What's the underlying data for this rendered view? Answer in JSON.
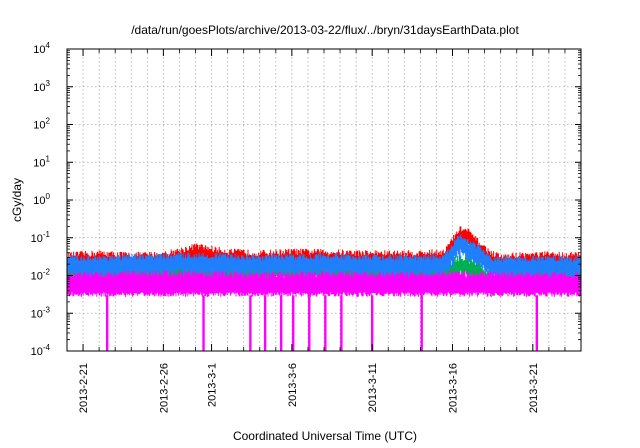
{
  "chart_data": {
    "type": "line",
    "title": "/data/run/goesPlots/archive/2013-03-22/flux/../bryn/31daysEarthData.plot",
    "xlabel": "Coordinated Universal Time (UTC)",
    "ylabel": "cGy/day",
    "x_range": [
      "2013-02-20T00:00",
      "2013-03-24T00:00"
    ],
    "x_ticks": [
      "2013-2-21",
      "2013-2-26",
      "2013-3-1",
      "2013-3-6",
      "2013-3-11",
      "2013-3-16",
      "2013-3-21"
    ],
    "x_minor_ticks": [
      "2013-02-22",
      "2013-02-23",
      "2013-02-24",
      "2013-02-25",
      "2013-02-27",
      "2013-02-28",
      "2013-03-02",
      "2013-03-03",
      "2013-03-04",
      "2013-03-05",
      "2013-03-07",
      "2013-03-08",
      "2013-03-09",
      "2013-03-10",
      "2013-03-12",
      "2013-03-13",
      "2013-03-14",
      "2013-03-15",
      "2013-03-17",
      "2013-03-18",
      "2013-03-19",
      "2013-03-20",
      "2013-03-22",
      "2013-03-23"
    ],
    "y_scale": "log",
    "ylim": [
      0.0001,
      10000
    ],
    "y_ticks": [
      {
        "base": "10",
        "exp": "4"
      },
      {
        "base": "10",
        "exp": "3"
      },
      {
        "base": "10",
        "exp": "2"
      },
      {
        "base": "10",
        "exp": "1"
      },
      {
        "base": "10",
        "exp": "0"
      },
      {
        "base": "10",
        "exp": "-1"
      },
      {
        "base": "10",
        "exp": "-2"
      },
      {
        "base": "10",
        "exp": "-3"
      },
      {
        "base": "10",
        "exp": "-4"
      }
    ],
    "grid": true,
    "series": [
      {
        "color": "#ff0000",
        "x": [
          "2013-02-20T00:00",
          "2013-02-22T00:00",
          "2013-02-24T00:00",
          "2013-02-26T00:00",
          "2013-02-27T12:00",
          "2013-02-28T00:00",
          "2013-03-02T00:00",
          "2013-03-04T00:00",
          "2013-03-06T00:00",
          "2013-03-08T00:00",
          "2013-03-10T00:00",
          "2013-03-12T00:00",
          "2013-03-14T00:00",
          "2013-03-15T12:00",
          "2013-03-16T06:00",
          "2013-03-16T12:00",
          "2013-03-17T00:00",
          "2013-03-17T12:00",
          "2013-03-18T06:00",
          "2013-03-19T00:00",
          "2013-03-20T00:00",
          "2013-03-22T00:00",
          "2013-03-24T00:00"
        ],
        "y": [
          0.04,
          0.045,
          0.04,
          0.042,
          0.06,
          0.07,
          0.05,
          0.045,
          0.05,
          0.048,
          0.046,
          0.045,
          0.045,
          0.05,
          0.15,
          0.2,
          0.17,
          0.1,
          0.05,
          0.035,
          0.04,
          0.042,
          0.04
        ]
      },
      {
        "color": "#00b050",
        "x": [
          "2013-02-20T00:00",
          "2013-02-24T00:00",
          "2013-02-28T00:00",
          "2013-03-04T00:00",
          "2013-03-08T00:00",
          "2013-03-12T00:00",
          "2013-03-15T12:00",
          "2013-03-16T12:00",
          "2013-03-17T12:00",
          "2013-03-18T12:00",
          "2013-03-20T00:00",
          "2013-03-24T00:00"
        ],
        "y": [
          0.022,
          0.022,
          0.025,
          0.022,
          0.024,
          0.021,
          0.022,
          0.035,
          0.025,
          0.012,
          0.02,
          0.022
        ]
      },
      {
        "color": "#1f7fff",
        "x": [
          "2013-02-20T00:00",
          "2013-02-24T00:00",
          "2013-02-28T00:00",
          "2013-03-04T00:00",
          "2013-03-08T00:00",
          "2013-03-12T00:00",
          "2013-03-15T12:00",
          "2013-03-16T06:00",
          "2013-03-16T12:00",
          "2013-03-17T12:00",
          "2013-03-18T12:00",
          "2013-03-20T00:00",
          "2013-03-24T00:00"
        ],
        "y": [
          0.033,
          0.035,
          0.04,
          0.035,
          0.038,
          0.034,
          0.036,
          0.1,
          0.12,
          0.07,
          0.03,
          0.032,
          0.033
        ]
      },
      {
        "color": "#ff00ff",
        "x": [
          "2013-02-20T00:00",
          "2013-02-24T00:00",
          "2013-02-28T00:00",
          "2013-03-04T00:00",
          "2013-03-08T00:00",
          "2013-03-12T00:00",
          "2013-03-16T00:00",
          "2013-03-20T00:00",
          "2013-03-24T00:00"
        ],
        "y": [
          0.012,
          0.013,
          0.013,
          0.012,
          0.013,
          0.012,
          0.013,
          0.012,
          0.012
        ],
        "baseline": 0.003,
        "dropouts": [
          "2013-02-22T12:00",
          "2013-02-28T12:00",
          "2013-03-03T10:00",
          "2013-03-04T08:00",
          "2013-03-05T08:00",
          "2013-03-06T02:00",
          "2013-03-07T02:00",
          "2013-03-08T02:00",
          "2013-03-09T02:00",
          "2013-03-11T00:00",
          "2013-03-14T02:00",
          "2013-03-21T06:00"
        ]
      }
    ]
  }
}
